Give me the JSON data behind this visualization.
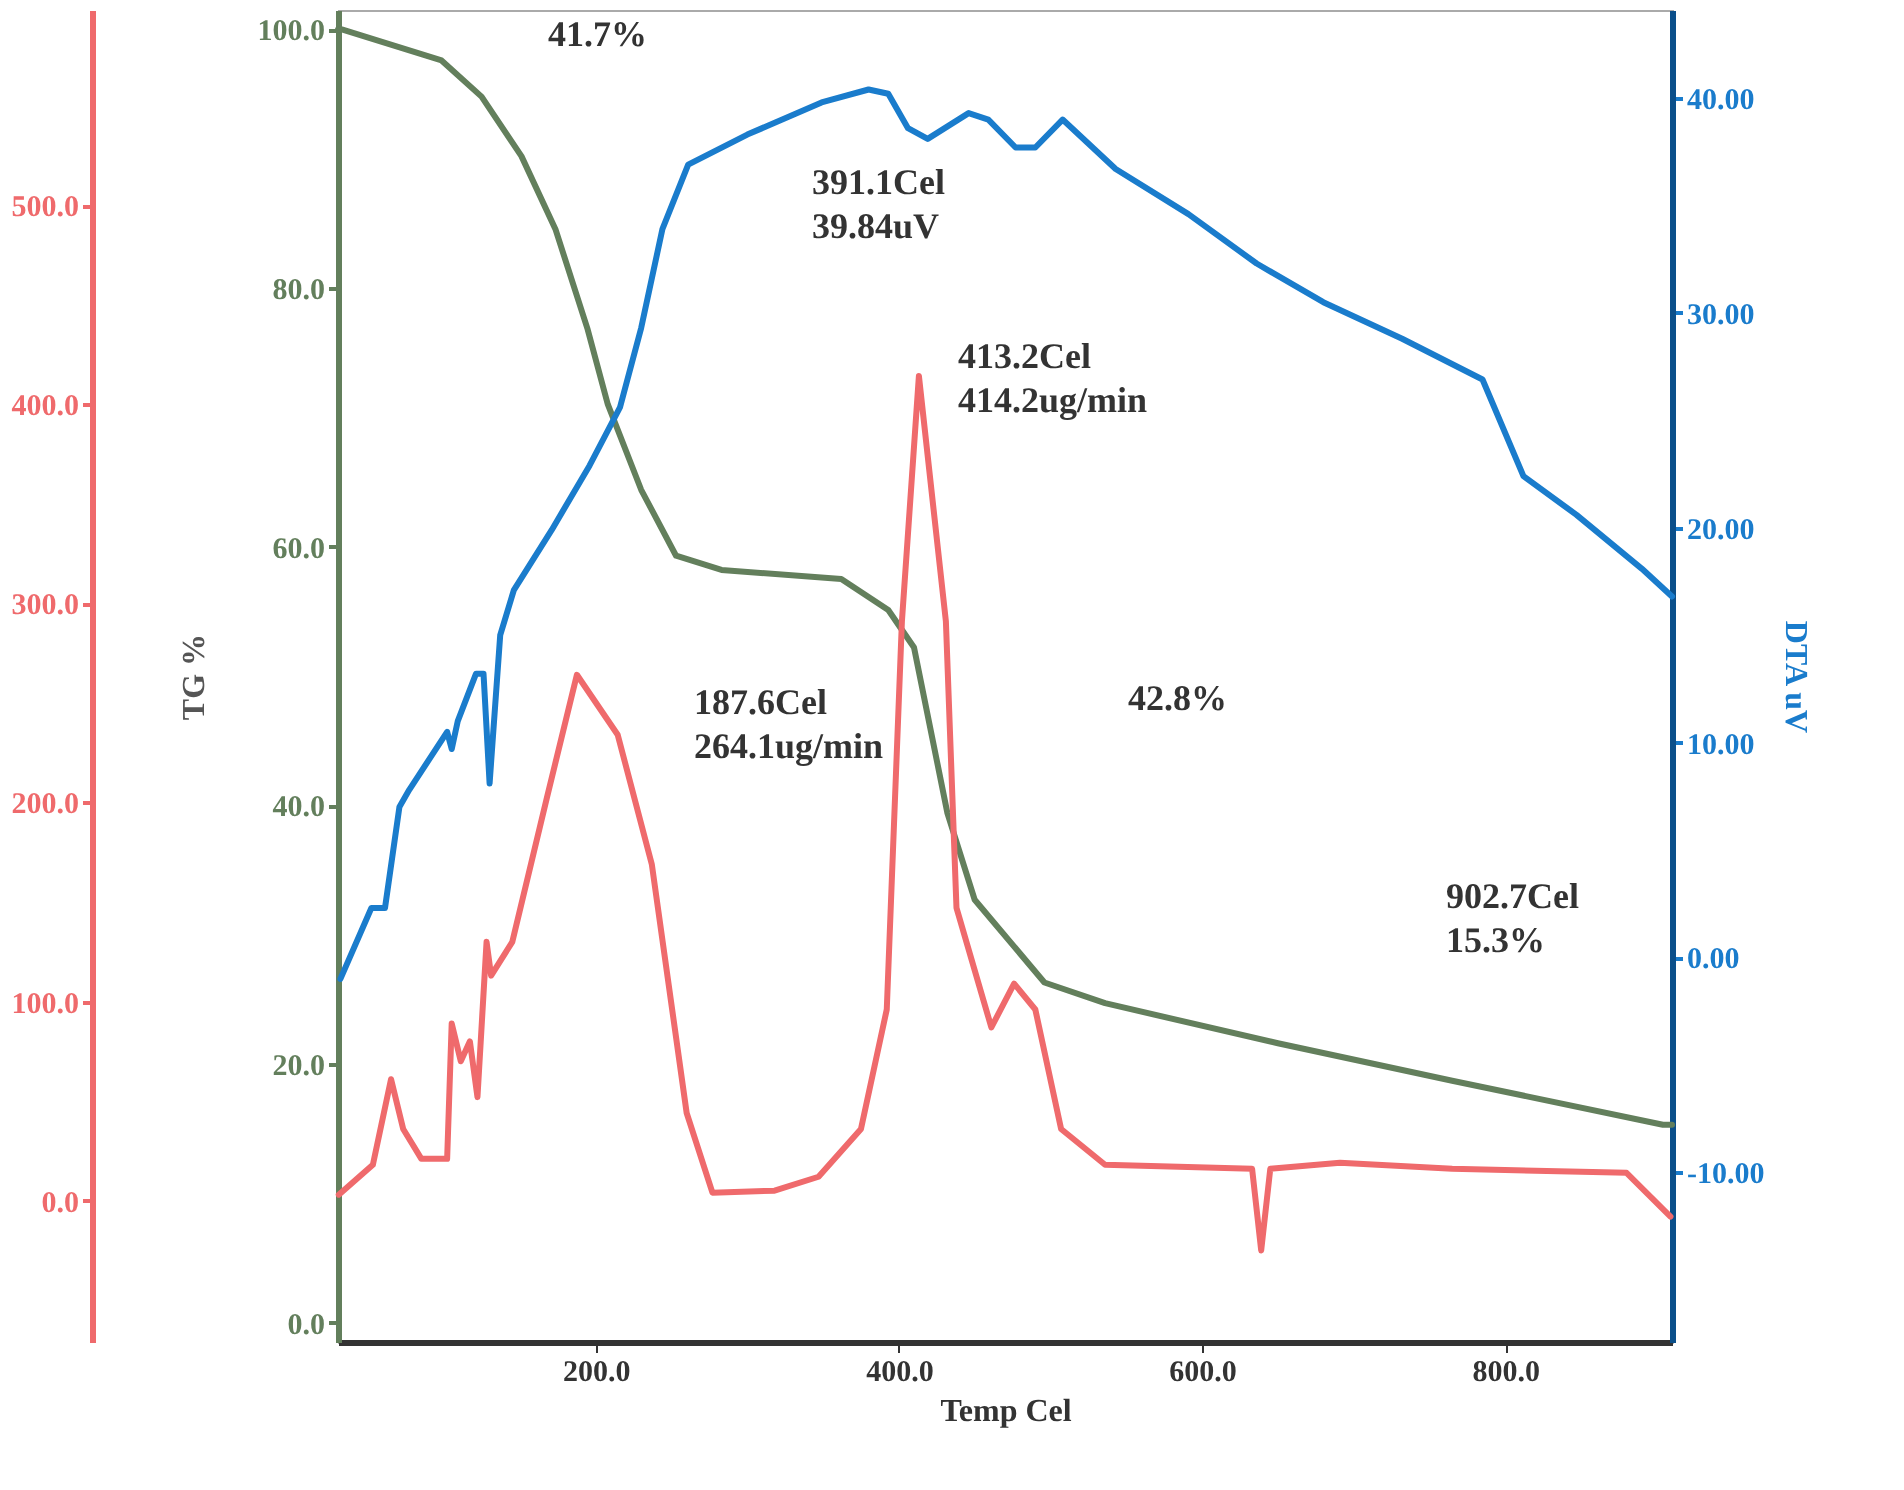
{
  "chart_data": {
    "type": "line",
    "xlabel": "Temp Cel",
    "ylabel": "TG %",
    "y2label": "DTA uV",
    "xlim": [
      30,
      910
    ],
    "xticks": [
      {
        "value": 200,
        "label": "200.0"
      },
      {
        "value": 400,
        "label": "400.0"
      },
      {
        "value": 600,
        "label": "600.0"
      },
      {
        "value": 800,
        "label": "800.0"
      }
    ],
    "ylim": [
      -1.5,
      101.5
    ],
    "yticks": [
      {
        "value": 0,
        "label": "0.0"
      },
      {
        "value": 20,
        "label": "20.0"
      },
      {
        "value": 40,
        "label": "40.0"
      },
      {
        "value": 60,
        "label": "60.0"
      },
      {
        "value": 80,
        "label": "80.0"
      },
      {
        "value": 100,
        "label": "100.0"
      }
    ],
    "y2lim": [
      -17.9,
      44.1
    ],
    "y2ticks": [
      {
        "value": -10,
        "label": "-10.00"
      },
      {
        "value": 0,
        "label": "0.00"
      },
      {
        "value": 10,
        "label": "10.00"
      },
      {
        "value": 20,
        "label": "20.00"
      },
      {
        "value": 30,
        "label": "30.00"
      },
      {
        "value": 40,
        "label": "40.00"
      }
    ],
    "y3lim": [
      -71,
      598
    ],
    "y3ticks": [
      {
        "value": 0,
        "label": "0.0"
      },
      {
        "value": 100,
        "label": "100.0"
      },
      {
        "value": 200,
        "label": "200.0"
      },
      {
        "value": 300,
        "label": "300.0"
      },
      {
        "value": 400,
        "label": "400.0"
      },
      {
        "value": 500,
        "label": "500.0"
      }
    ],
    "grid": false,
    "line_style": "solid",
    "marker": "none",
    "series": [
      {
        "color": "#637f5c",
        "x": [
          30,
          32.5,
          98.3,
          124.7,
          151,
          173.6,
          194.7,
          208,
          230,
          253,
          283,
          362,
          393,
          410,
          432,
          450,
          496,
          536,
          650,
          765,
          904,
          910
        ],
        "values": [
          100.0,
          100.0,
          97.6,
          94.8,
          90.2,
          84.5,
          76.8,
          71.0,
          64.4,
          59.3,
          58.2,
          57.5,
          55.1,
          52.2,
          39.4,
          32.7,
          26.3,
          24.7,
          21.6,
          18.7,
          15.3,
          15.3
        ]
      },
      {
        "color": "#1a7ccc",
        "axis": "y2",
        "x": [
          31.6,
          52,
          61,
          70.5,
          77,
          102,
          105,
          109,
          121,
          126,
          130,
          137,
          146,
          171,
          196,
          216,
          230,
          244,
          261,
          300,
          349,
          380,
          393,
          406,
          419,
          446,
          459,
          477,
          490,
          508,
          543,
          591,
          636,
          680,
          732,
          785,
          812,
          847,
          890,
          910
        ],
        "values": [
          -1.0,
          2.3,
          2.3,
          7.0,
          7.8,
          10.5,
          9.7,
          11.0,
          13.2,
          13.2,
          8.1,
          15.0,
          17.1,
          19.9,
          22.9,
          25.6,
          29.3,
          33.9,
          36.9,
          38.3,
          39.8,
          40.4,
          40.2,
          38.6,
          38.1,
          39.3,
          39.0,
          37.7,
          37.7,
          39.0,
          36.7,
          34.6,
          32.3,
          30.5,
          28.8,
          26.9,
          22.4,
          20.6,
          18.1,
          16.8
        ]
      },
      {
        "color": "#ef6a6c",
        "axis": "y3",
        "x": [
          30.5,
          53,
          65,
          73,
          85,
          102,
          105,
          111,
          117,
          122,
          128,
          131,
          145,
          168,
          187.6,
          214.5,
          237,
          260,
          277,
          318,
          347,
          375,
          392,
          402,
          413.2,
          431,
          438,
          461,
          476,
          490,
          507,
          536,
          633,
          639,
          645,
          691,
          765,
          880,
          909
        ],
        "values": [
          3,
          18,
          61,
          36,
          21,
          21,
          89,
          70,
          80,
          52,
          130,
          113,
          130,
          203,
          264.1,
          234,
          169,
          44,
          4,
          5,
          12,
          36,
          96,
          291,
          414.2,
          291,
          147,
          87,
          109,
          96,
          36,
          18,
          16,
          -25,
          16,
          19,
          16,
          14,
          -8
        ]
      }
    ],
    "annotations": [
      "41.7%",
      "391.1Cel\n39.84uV",
      "413.2Cel\n414.2ug/min",
      "187.6Cel\n264.1ug/min",
      "42.8%",
      "902.7Cel\n15.3%"
    ]
  }
}
